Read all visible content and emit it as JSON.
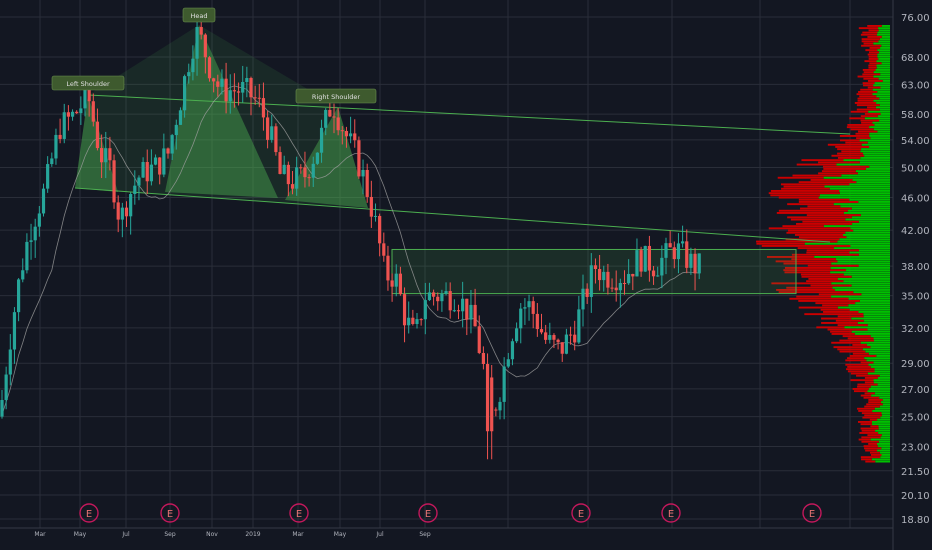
{
  "chart_data": {
    "type": "candlestick",
    "scale": "log",
    "grid": true,
    "colors": {
      "background": "#131722",
      "grid": "#2a2e39",
      "up": "#26a69a",
      "down": "#ef5350",
      "pattern_fill": "#4caf50",
      "trendline": "#2e7d32",
      "volume_up": "#00c000",
      "volume_down": "#cc0000",
      "moving_average": "#9e9e9e",
      "earnings_marker": "#c2185b",
      "label_bg": "#3e5a2e"
    },
    "y_ticks": [
      "76.00",
      "68.00",
      "63.00",
      "58.00",
      "54.00",
      "50.00",
      "46.00",
      "42.00",
      "38.00",
      "35.00",
      "32.00",
      "29.00",
      "27.00",
      "25.00",
      "23.00",
      "21.50",
      "20.10",
      "18.80"
    ],
    "x_ticks": [
      "Mar",
      "May",
      "Jul",
      "Sep",
      "Nov",
      "2019",
      "Mar",
      "May",
      "Jul",
      "Sep"
    ],
    "ylim": [
      18.8,
      76
    ],
    "candles_summary": [
      {
        "period": "Feb 2018",
        "price": 25
      },
      {
        "period": "Mar 2018",
        "price": 36
      },
      {
        "period": "Apr 2018",
        "price": 40
      },
      {
        "period": "May 2018",
        "price": 61
      },
      {
        "period": "Jun 2018",
        "price": 52
      },
      {
        "period": "Jul 2018",
        "price": 44
      },
      {
        "period": "Aug 2018",
        "price": 52
      },
      {
        "period": "Sep 2018",
        "price": 48
      },
      {
        "period": "Sep 2018",
        "price": 64
      },
      {
        "period": "Oct 2018",
        "price": 74
      },
      {
        "period": "Nov 2018",
        "price": 64
      },
      {
        "period": "Dec 2018",
        "price": 60
      },
      {
        "period": "Jan 2019",
        "price": 64
      },
      {
        "period": "Feb 2019",
        "price": 47
      },
      {
        "period": "Mar 2019",
        "price": 49
      },
      {
        "period": "May 2019",
        "price": 60
      },
      {
        "period": "Jun 2019",
        "price": 48
      },
      {
        "period": "Jul 2019",
        "price": 37
      },
      {
        "period": "Aug 2019",
        "price": 33
      },
      {
        "period": "Sep 2019",
        "price": 37
      },
      {
        "period": "Oct 2019",
        "price": 34
      },
      {
        "period": "Nov 2019",
        "price": 27
      },
      {
        "period": "Nov 2019",
        "price": 23
      },
      {
        "period": "Dec 2019",
        "price": 30
      },
      {
        "period": "Jan 2020",
        "price": 36
      },
      {
        "period": "Feb 2020",
        "price": 32
      },
      {
        "period": "Mar 2020",
        "price": 32
      },
      {
        "period": "Apr 2020",
        "price": 39
      },
      {
        "period": "May 2020",
        "price": 37
      },
      {
        "period": "Jun 2020",
        "price": 39
      }
    ],
    "annotations": [
      {
        "text": "Left Shoulder",
        "type": "label"
      },
      {
        "text": "Head",
        "type": "label"
      },
      {
        "text": "Right Shoulder",
        "type": "label"
      }
    ],
    "earnings_markers": [
      "E",
      "E",
      "E",
      "E",
      "E",
      "E",
      "E"
    ],
    "consolidation_box": {
      "low": 35.2,
      "high": 39.8
    },
    "neckline": {
      "start_price": 47.5,
      "end_price": 40.5
    },
    "upper_line": {
      "start_price": 61.5,
      "end_price": 54.5
    }
  }
}
